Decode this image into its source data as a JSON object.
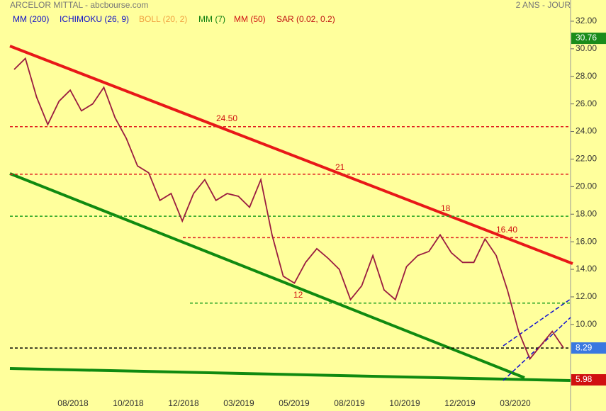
{
  "chart_data": {
    "type": "line",
    "title": "ARCELOR MITTAL - abcbourse.com",
    "subtitle": "2 ANS - JOUR",
    "legend": [
      {
        "name": "MM (200)",
        "color": "#1010c8"
      },
      {
        "name": "ICHIMOKU (26, 9)",
        "color": "#1010c8"
      },
      {
        "name": "BOLL (20, 2)",
        "color": "#f0a040"
      },
      {
        "name": "MM (7)",
        "color": "#108010"
      },
      {
        "name": "MM (50)",
        "color": "#d01010"
      },
      {
        "name": "SAR (0.02, 0.2)",
        "color": "#c01010"
      }
    ],
    "x_labels": [
      "08/2018",
      "10/2018",
      "12/2018",
      "03/2019",
      "05/2019",
      "08/2019",
      "10/2019",
      "12/2019",
      "03/2020"
    ],
    "series": [
      {
        "name": "ARCELOR MITTAL",
        "color": "#9a1c40",
        "values": [
          28.5,
          29.3,
          26.5,
          24.5,
          26.2,
          27,
          25.5,
          26,
          27.2,
          25,
          23.5,
          21.5,
          21,
          19,
          19.5,
          17.5,
          19.5,
          20.5,
          19,
          19.5,
          19.3,
          18.5,
          20.5,
          16.5,
          13.5,
          13,
          14.5,
          15.5,
          14.8,
          14,
          11.8,
          12.8,
          15,
          12.5,
          11.8,
          14.2,
          15,
          15.3,
          16.5,
          15.2,
          14.5,
          14.5,
          16.2,
          15,
          12.5,
          9.5,
          7.5,
          8.5,
          9.5,
          8.3
        ]
      }
    ],
    "levels": [
      {
        "value": 24.35,
        "color": "#e02020"
      },
      {
        "value": 20.9,
        "color": "#e02020"
      },
      {
        "value": 17.85,
        "color": "#20a020"
      },
      {
        "value": 16.3,
        "color": "#e02020"
      },
      {
        "value": 11.55,
        "color": "#20a020"
      },
      {
        "value": 8.29,
        "color": "#000000"
      }
    ],
    "annotations": [
      "24.50",
      "21",
      "18",
      "16.40",
      "12"
    ],
    "price_tags": [
      {
        "value": 30.76,
        "color": "#1a8c1a"
      },
      {
        "value": 8.29,
        "color": "#3a78e0"
      },
      {
        "value": 5.98,
        "color": "#d01010"
      }
    ],
    "ylim": [
      3.72,
      33.54
    ],
    "yticks": [
      {
        "value": 10,
        "label": "10.00"
      },
      {
        "value": 12,
        "label": "12.00"
      },
      {
        "value": 14,
        "label": "14.00"
      },
      {
        "value": 16,
        "label": "16.00"
      },
      {
        "value": 18,
        "label": "18.00"
      },
      {
        "value": 20,
        "label": "20.00"
      },
      {
        "value": 22,
        "label": "22.00"
      },
      {
        "value": 24,
        "label": "24.00"
      },
      {
        "value": 26,
        "label": "26.00"
      },
      {
        "value": 28,
        "label": "28.00"
      },
      {
        "value": 30,
        "label": "30.00"
      },
      {
        "value": 32,
        "label": "32.00"
      }
    ]
  }
}
